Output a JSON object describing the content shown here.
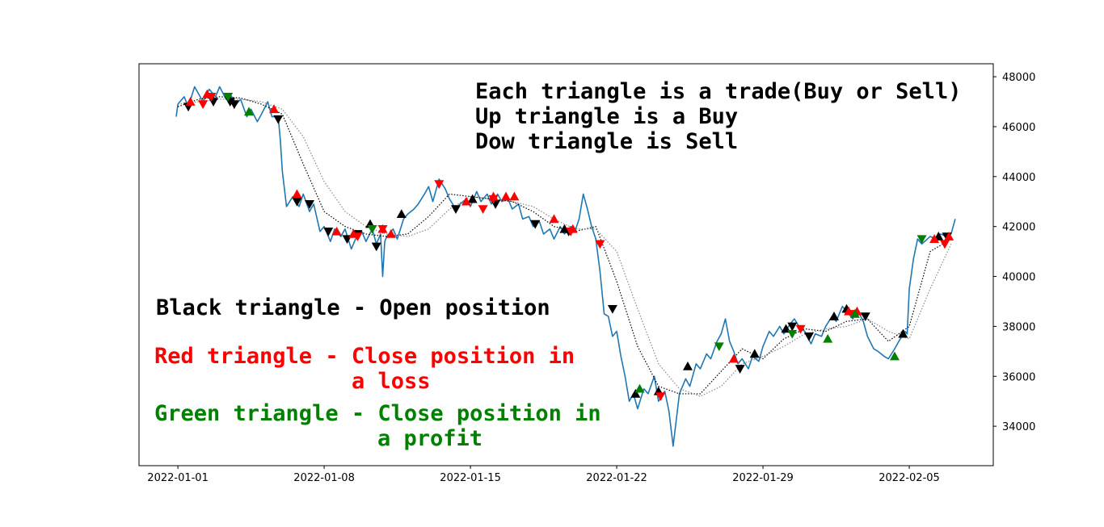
{
  "chart_data": {
    "type": "line",
    "xlim": [
      -1.86,
      39.02
    ],
    "ylim": [
      32420,
      48520
    ],
    "xticks": [
      {
        "value": 0,
        "label": "2022-01-01"
      },
      {
        "value": 7,
        "label": "2022-01-08"
      },
      {
        "value": 14,
        "label": "2022-01-15"
      },
      {
        "value": 21,
        "label": "2022-01-22"
      },
      {
        "value": 28,
        "label": "2022-01-29"
      },
      {
        "value": 35,
        "label": "2022-02-05"
      }
    ],
    "yticks": [
      34000,
      36000,
      38000,
      40000,
      42000,
      44000,
      46000,
      48000
    ],
    "y_axis_side": "right",
    "grid": false,
    "annotations": [
      {
        "text": "Each triangle is a trade(Buy or Sell)",
        "color": "#000000"
      },
      {
        "text": "Up triangle is a Buy",
        "color": "#000000"
      },
      {
        "text": "Dow triangle is Sell",
        "color": "#000000"
      },
      {
        "text": "Black triangle - Open position",
        "color": "#000000"
      },
      {
        "text": "Red triangle - Close position in",
        "color": "#ff0000"
      },
      {
        "text": "a loss",
        "color": "#ff0000"
      },
      {
        "text": "Green triangle - Close position in",
        "color": "#008000"
      },
      {
        "text": "a profit",
        "color": "#008000"
      }
    ],
    "series": [
      {
        "color": "#1f77b4",
        "style": "solid",
        "x": [
          -0.08,
          0,
          0.3,
          0.5,
          0.8,
          1,
          1.2,
          1.5,
          1.8,
          2,
          2.3,
          2.5,
          2.8,
          3,
          3.3,
          3.5,
          3.8,
          4,
          4.3,
          4.5,
          4.8,
          4.9,
          5,
          5.2,
          5.5,
          5.8,
          6,
          6.3,
          6.5,
          6.8,
          7,
          7.3,
          7.5,
          7.8,
          8,
          8.3,
          8.5,
          8.8,
          9,
          9.3,
          9.5,
          9.7,
          9.8,
          9.9,
          10,
          10.3,
          10.5,
          10.8,
          11,
          11.3,
          11.5,
          11.8,
          12,
          12.2,
          12.5,
          12.8,
          13,
          13.3,
          13.5,
          13.8,
          14,
          14.3,
          14.5,
          14.8,
          15,
          15.3,
          15.5,
          15.8,
          16,
          16.3,
          16.5,
          16.8,
          17,
          17.3,
          17.5,
          17.8,
          18,
          18.3,
          18.5,
          18.8,
          19,
          19.2,
          19.4,
          19.6,
          19.8,
          20,
          20.2,
          20.4,
          20.6,
          20.8,
          21,
          21.2,
          21.4,
          21.6,
          21.8,
          22,
          22.3,
          22.5,
          22.8,
          23,
          23.3,
          23.5,
          23.7,
          23.9,
          24,
          24.3,
          24.5,
          24.8,
          25,
          25.3,
          25.5,
          25.8,
          26,
          26.2,
          26.4,
          26.6,
          26.8,
          27,
          27.3,
          27.5,
          27.8,
          28,
          28.3,
          28.5,
          28.8,
          29,
          29.3,
          29.5,
          29.8,
          30,
          30.3,
          30.5,
          30.8,
          31,
          31.3,
          31.5,
          31.8,
          32,
          32.3,
          32.5,
          32.8,
          33,
          33.3,
          33.5,
          33.8,
          34,
          34.3,
          34.5,
          34.8,
          34.9,
          35,
          35.2,
          35.4,
          35.6,
          36,
          36.3,
          36.5,
          36.8,
          37,
          37.2
        ],
        "values": [
          46400,
          46900,
          47200,
          46800,
          47600,
          47300,
          47000,
          47500,
          47200,
          47600,
          47100,
          47300,
          46900,
          47100,
          46400,
          46700,
          46200,
          46500,
          47000,
          46400,
          46400,
          45500,
          44200,
          42800,
          43200,
          42800,
          43300,
          42600,
          42900,
          41800,
          42000,
          41400,
          41900,
          41600,
          41900,
          41100,
          41500,
          41800,
          41400,
          41900,
          41300,
          41700,
          40000,
          41400,
          41600,
          41900,
          41500,
          42300,
          42500,
          42700,
          42900,
          43300,
          43600,
          43000,
          43900,
          43500,
          43100,
          42700,
          42900,
          43100,
          42800,
          43400,
          43000,
          43300,
          42900,
          43300,
          43000,
          43100,
          42700,
          42900,
          42300,
          42400,
          42000,
          42200,
          41700,
          41900,
          41500,
          42000,
          41700,
          42000,
          41800,
          42300,
          43300,
          42700,
          42000,
          41500,
          40200,
          38500,
          38400,
          37600,
          37800,
          36800,
          36000,
          35000,
          35300,
          34700,
          35500,
          35300,
          36000,
          35000,
          35400,
          34600,
          33200,
          34600,
          35300,
          35900,
          35600,
          36500,
          36300,
          36900,
          36700,
          37400,
          37700,
          38300,
          37400,
          37000,
          36500,
          36700,
          36300,
          36800,
          36600,
          37200,
          37800,
          37600,
          38000,
          37700,
          38100,
          38300,
          37900,
          37800,
          37300,
          37700,
          37600,
          38000,
          38400,
          38200,
          38800,
          38600,
          38300,
          38700,
          38200,
          37600,
          37100,
          37000,
          36800,
          36700,
          37100,
          37400,
          37800,
          37700,
          39500,
          40700,
          41500,
          41300,
          41600,
          41500,
          41700,
          41600,
          41700,
          42300
        ]
      },
      {
        "color": "#000000",
        "style": "dotted",
        "x": [
          0,
          1,
          2,
          3,
          4,
          5,
          6,
          7,
          8,
          9,
          10,
          11,
          12,
          13,
          14,
          15,
          16,
          17,
          18,
          19,
          20,
          21,
          22,
          23,
          24,
          25,
          26,
          27,
          28,
          29,
          30,
          31,
          32,
          33,
          34,
          35,
          36,
          37
        ],
        "values": [
          46800,
          47100,
          47200,
          47150,
          46900,
          46500,
          44500,
          42600,
          42000,
          41700,
          41600,
          41700,
          42400,
          43300,
          43200,
          43100,
          43000,
          42600,
          42000,
          41800,
          42000,
          39800,
          37200,
          35600,
          35300,
          35300,
          36200,
          37100,
          36700,
          37500,
          37900,
          37800,
          38200,
          38300,
          37400,
          38000,
          41000,
          41500
        ]
      },
      {
        "color": "#888888",
        "style": "dotted",
        "x": [
          0,
          1,
          2,
          3,
          4,
          5,
          6,
          7,
          8,
          9,
          10,
          11,
          12,
          13,
          14,
          15,
          16,
          17,
          18,
          19,
          20,
          21,
          22,
          23,
          24,
          25,
          26,
          27,
          28,
          29,
          30,
          31,
          32,
          33,
          34,
          35,
          36,
          37
        ],
        "values": [
          46900,
          47000,
          47100,
          47100,
          47000,
          46700,
          45600,
          43800,
          42600,
          42000,
          41700,
          41600,
          41900,
          42700,
          43200,
          43100,
          43000,
          42800,
          42300,
          41900,
          41900,
          41000,
          38700,
          36500,
          35500,
          35200,
          35600,
          36500,
          36800,
          37200,
          37700,
          37900,
          38000,
          38300,
          37800,
          37500,
          39500,
          41300
        ]
      },
      {
        "color": "#000000",
        "marker": "^",
        "x": [
          9.2,
          10.7,
          14.1,
          18.5,
          21.9,
          23.0,
          24.4,
          27.6,
          29.1,
          31.4,
          32.0,
          34.7,
          36.4
        ],
        "values": [
          42100,
          42500,
          43100,
          41900,
          35300,
          35400,
          36400,
          36900,
          37900,
          38400,
          38700,
          37700,
          41600
        ]
      },
      {
        "color": "#000000",
        "marker": "v",
        "x": [
          0.5,
          1.7,
          2.5,
          2.7,
          4.8,
          5.7,
          6.3,
          7.2,
          8.1,
          8.6,
          9.5,
          13.3,
          15.2,
          17.1,
          18.7,
          20.8,
          26.9,
          29.4,
          30.2,
          32.9,
          36.8
        ],
        "values": [
          46800,
          47000,
          47000,
          46900,
          46300,
          43000,
          42900,
          41800,
          41500,
          41700,
          41200,
          42700,
          42900,
          42100,
          41800,
          38700,
          36300,
          38000,
          37600,
          38400,
          41600
        ]
      },
      {
        "color": "#ff0000",
        "marker": "^",
        "x": [
          0.6,
          1.4,
          4.6,
          5.7,
          7.6,
          8.4,
          9.8,
          10.2,
          13.8,
          15.1,
          15.7,
          16.1,
          18.0,
          18.9,
          26.6,
          32.1,
          32.5,
          36.2,
          36.9
        ],
        "values": [
          47000,
          47300,
          46700,
          43300,
          41800,
          41700,
          41900,
          41700,
          43000,
          43200,
          43200,
          43200,
          42300,
          41900,
          36700,
          38600,
          38600,
          41500,
          41600
        ]
      },
      {
        "color": "#ff0000",
        "marker": "v",
        "x": [
          1.2,
          1.6,
          8.6,
          9.8,
          12.5,
          14.6,
          15.1,
          18.8,
          20.2,
          23.1,
          29.8,
          32.3,
          36.7
        ],
        "values": [
          46900,
          47200,
          41600,
          41900,
          43700,
          42700,
          43100,
          41800,
          41300,
          35200,
          37900,
          38500,
          41300
        ]
      },
      {
        "color": "#008000",
        "marker": "^",
        "x": [
          3.4,
          22.1,
          31.1,
          32.4,
          34.3
        ],
        "values": [
          46600,
          35500,
          37500,
          38500,
          36800
        ]
      },
      {
        "color": "#008000",
        "marker": "v",
        "x": [
          2.4,
          9.3,
          25.9,
          29.4,
          35.6
        ],
        "values": [
          47200,
          41900,
          37200,
          37700,
          41500
        ]
      }
    ]
  }
}
